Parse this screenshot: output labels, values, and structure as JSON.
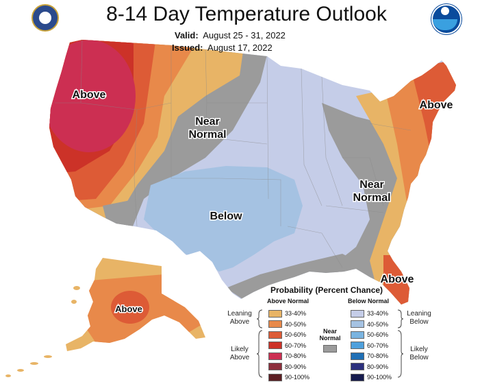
{
  "title": "8-14 Day Temperature Outlook",
  "valid_label": "Valid:",
  "valid_dates": "August 25 - 31, 2022",
  "issued_label": "Issued:",
  "issued_date": "August 17, 2022",
  "logos": {
    "left": "doc-seal-icon",
    "right": "noaa-logo-icon"
  },
  "map_labels": {
    "above_west": "Above",
    "near_normal_north_1": "Near",
    "near_normal_north_2": "Normal",
    "below": "Below",
    "above_ne": "Above",
    "near_normal_east_1": "Near",
    "near_normal_east_2": "Normal",
    "above_fl": "Above",
    "above_ak": "Above"
  },
  "legend": {
    "title": "Probability (Percent Chance)",
    "above_header": "Above Normal",
    "below_header": "Below Normal",
    "near_normal_1": "Near",
    "near_normal_2": "Normal",
    "leaning_above_1": "Leaning",
    "leaning_above_2": "Above",
    "likely_above_1": "Likely",
    "likely_above_2": "Above",
    "leaning_below_1": "Leaning",
    "leaning_below_2": "Below",
    "likely_below_1": "Likely",
    "likely_below_2": "Below",
    "above_ranges": [
      "33-40%",
      "40-50%",
      "50-60%",
      "60-70%",
      "70-80%",
      "80-90%",
      "90-100%"
    ],
    "below_ranges": [
      "33-40%",
      "40-50%",
      "50-60%",
      "60-70%",
      "70-80%",
      "80-90%",
      "90-100%"
    ],
    "above_colors": [
      "#e8b466",
      "#e8894a",
      "#dd5b36",
      "#cc3228",
      "#cc2f52",
      "#8c2f3c",
      "#5c1f24"
    ],
    "below_colors": [
      "#c5cde8",
      "#a5c2e2",
      "#7ab4e0",
      "#4ea0dc",
      "#1f6fb5",
      "#2c2f7c",
      "#161b4e"
    ],
    "near_color": "#9b9b9b"
  }
}
